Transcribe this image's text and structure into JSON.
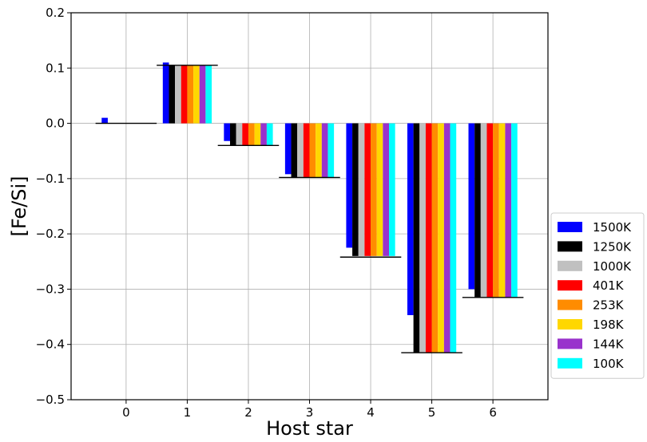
{
  "chart_data": {
    "type": "bar",
    "title": "",
    "xlabel": "Host star",
    "ylabel": "[Fe/Si]",
    "categories": [
      "0",
      "1",
      "2",
      "3",
      "4",
      "5",
      "6"
    ],
    "ylim": [
      -0.5,
      0.2
    ],
    "yticks": [
      "0.2",
      "0.1",
      "0.0",
      "−0.1",
      "−0.2",
      "−0.3",
      "−0.4",
      "−0.5"
    ],
    "ytick_values": [
      0.2,
      0.1,
      0.0,
      -0.1,
      -0.2,
      -0.3,
      -0.4,
      -0.5
    ],
    "grid": true,
    "legend_position": "right-bottom-outside",
    "series": [
      {
        "name": "1500K",
        "color": "#0000ff",
        "values": [
          0.01,
          0.11,
          -0.032,
          -0.092,
          -0.225,
          -0.347,
          -0.3
        ]
      },
      {
        "name": "1250K",
        "color": "#000000",
        "values": [
          0.0,
          0.105,
          -0.04,
          -0.098,
          -0.24,
          -0.415,
          -0.315
        ]
      },
      {
        "name": "1000K",
        "color": "#c0c0c0",
        "values": [
          0.0,
          0.105,
          -0.04,
          -0.098,
          -0.24,
          -0.415,
          -0.315
        ]
      },
      {
        "name": "401K",
        "color": "#ff0000",
        "values": [
          0.0,
          0.105,
          -0.04,
          -0.098,
          -0.24,
          -0.415,
          -0.315
        ]
      },
      {
        "name": "253K",
        "color": "#ff8c00",
        "values": [
          0.0,
          0.105,
          -0.04,
          -0.098,
          -0.24,
          -0.415,
          -0.315
        ]
      },
      {
        "name": "198K",
        "color": "#ffd700",
        "values": [
          0.0,
          0.105,
          -0.04,
          -0.098,
          -0.24,
          -0.415,
          -0.315
        ]
      },
      {
        "name": "144K",
        "color": "#9932cc",
        "values": [
          0.0,
          0.105,
          -0.04,
          -0.098,
          -0.24,
          -0.415,
          -0.315
        ]
      },
      {
        "name": "100K",
        "color": "#00ffff",
        "values": [
          0.0,
          0.105,
          -0.04,
          -0.098,
          -0.24,
          -0.415,
          -0.315
        ]
      }
    ],
    "reference_lines": [
      0.0,
      0.105,
      -0.04,
      -0.098,
      -0.242,
      -0.415,
      -0.315
    ]
  }
}
